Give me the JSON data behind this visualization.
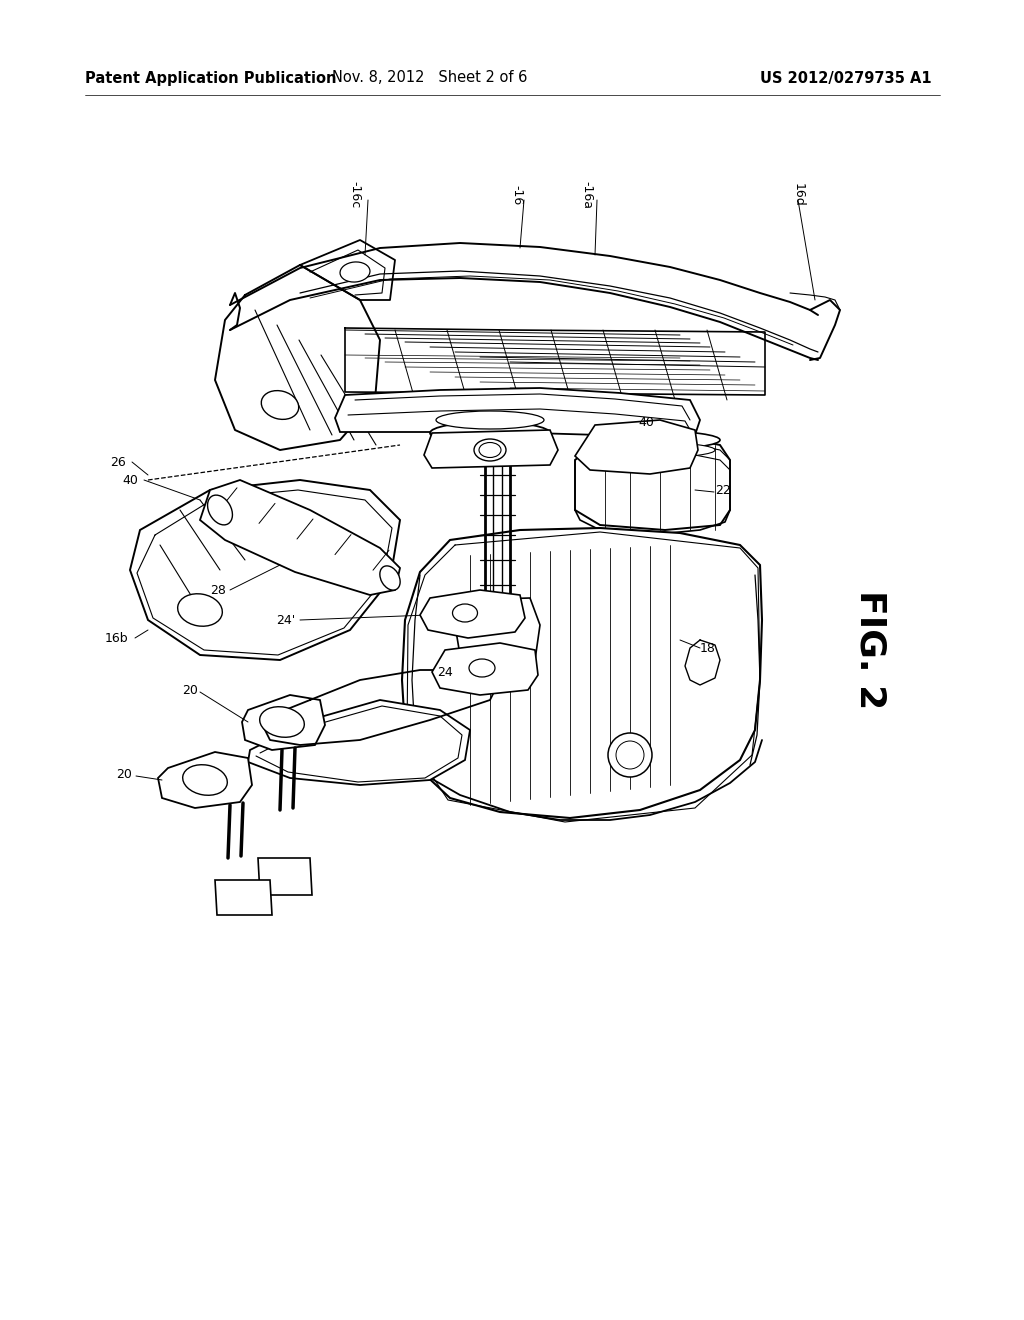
{
  "background_color": "#ffffff",
  "header_left": "Patent Application Publication",
  "header_center": "Nov. 8, 2012   Sheet 2 of 6",
  "header_right": "US 2012/0279735 A1",
  "figure_label": "FIG. 2",
  "header_fontsize": 10.5,
  "figure_label_fontsize": 26,
  "text_color": "#000000",
  "line_color": "#000000",
  "fig_width": 10.24,
  "fig_height": 13.2,
  "dpi": 100
}
